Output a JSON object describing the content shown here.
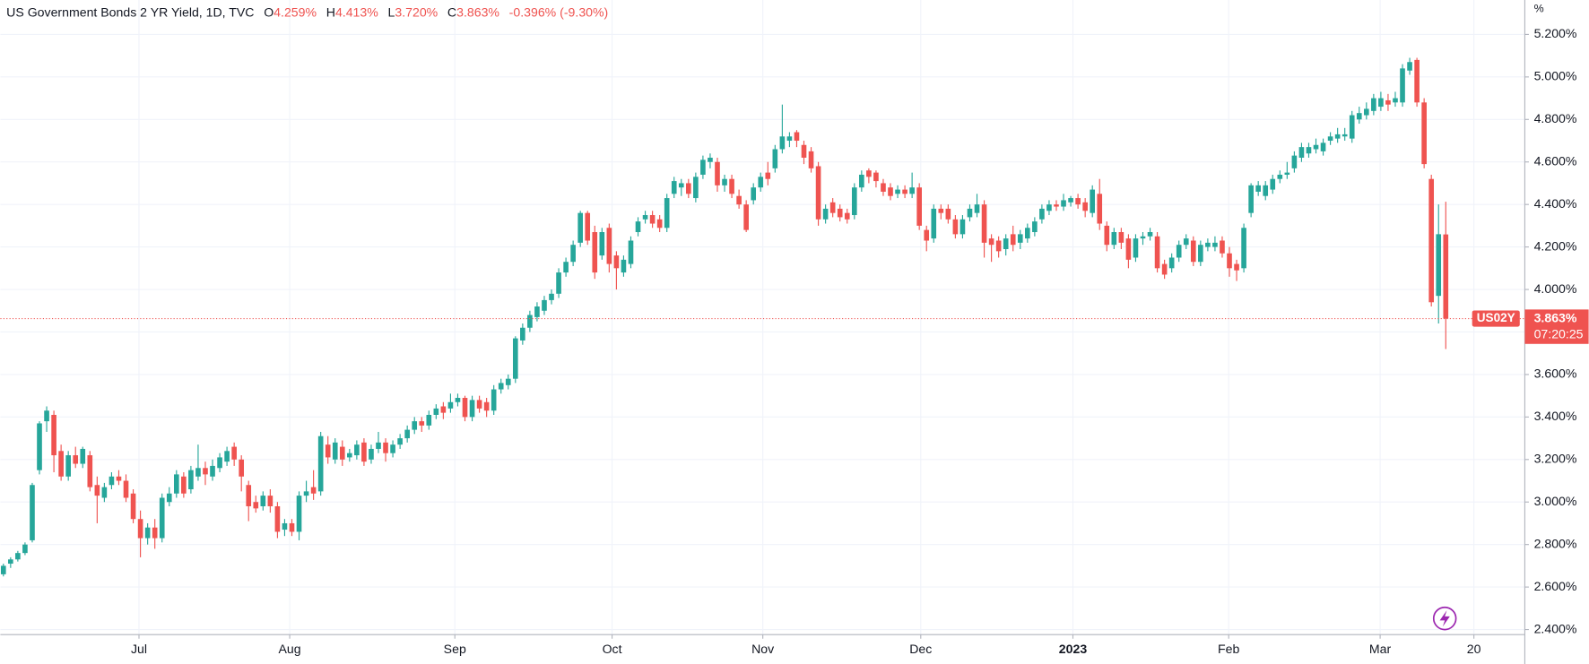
{
  "chart_data": {
    "type": "candlestick",
    "title": "US Government Bonds 2 YR Yield, 1D, TVC",
    "ohlc_keys": [
      "O",
      "H",
      "L",
      "C"
    ],
    "ohlc_value_labels": [
      "4.259%",
      "4.413%",
      "3.720%",
      "3.863%"
    ],
    "change_label": "-0.396% (-9.30%)",
    "unit": "%",
    "symbol": "US02Y",
    "last_label": "3.863%",
    "countdown": "07:20:25",
    "up_color": "#26a69a",
    "down_color": "#ef5350",
    "grid": true,
    "ylim": [
      2.376,
      5.362
    ],
    "yticks": [
      {
        "value": 5.2,
        "label": "5.200%"
      },
      {
        "value": 5.0,
        "label": "5.000%"
      },
      {
        "value": 4.8,
        "label": "4.800%"
      },
      {
        "value": 4.6,
        "label": "4.600%"
      },
      {
        "value": 4.4,
        "label": "4.400%"
      },
      {
        "value": 4.2,
        "label": "4.200%"
      },
      {
        "value": 4.0,
        "label": "4.000%"
      },
      {
        "value": 3.8,
        "label": "3.800%"
      },
      {
        "value": 3.6,
        "label": "3.600%"
      },
      {
        "value": 3.4,
        "label": "3.400%"
      },
      {
        "value": 3.2,
        "label": "3.200%"
      },
      {
        "value": 3.0,
        "label": "3.000%"
      },
      {
        "value": 2.8,
        "label": "2.800%"
      },
      {
        "value": 2.6,
        "label": "2.600%"
      },
      {
        "value": 2.4,
        "label": "2.400%"
      }
    ],
    "xlim": [
      -0.42,
      210.96
    ],
    "xticks": [
      {
        "value": 18.8,
        "label": "Jul"
      },
      {
        "value": 39.7,
        "label": "Aug"
      },
      {
        "value": 62.6,
        "label": "Sep"
      },
      {
        "value": 84.4,
        "label": "Oct"
      },
      {
        "value": 105.3,
        "label": "Nov"
      },
      {
        "value": 127.2,
        "label": "Dec"
      },
      {
        "value": 148.3,
        "label": "2023"
      },
      {
        "value": 169.9,
        "label": "Feb"
      },
      {
        "value": 190.9,
        "label": "Mar"
      },
      {
        "value": 203.9,
        "label": "20"
      }
    ],
    "ohlc": [
      [
        2.66,
        2.71,
        2.65,
        2.7
      ],
      [
        2.71,
        2.74,
        2.69,
        2.73
      ],
      [
        2.73,
        2.77,
        2.72,
        2.76
      ],
      [
        2.76,
        2.81,
        2.75,
        2.8
      ],
      [
        2.82,
        3.09,
        2.81,
        3.08
      ],
      [
        3.15,
        3.38,
        3.13,
        3.37
      ],
      [
        3.38,
        3.45,
        3.33,
        3.43
      ],
      [
        3.41,
        3.43,
        3.14,
        3.22
      ],
      [
        3.24,
        3.27,
        3.1,
        3.12
      ],
      [
        3.12,
        3.24,
        3.1,
        3.22
      ],
      [
        3.22,
        3.26,
        3.16,
        3.18
      ],
      [
        3.18,
        3.26,
        3.16,
        3.25
      ],
      [
        3.22,
        3.24,
        3.05,
        3.07
      ],
      [
        3.08,
        3.12,
        2.9,
        3.03
      ],
      [
        3.02,
        3.09,
        3.0,
        3.07
      ],
      [
        3.08,
        3.14,
        3.06,
        3.12
      ],
      [
        3.12,
        3.15,
        3.08,
        3.1
      ],
      [
        3.1,
        3.13,
        3.0,
        3.02
      ],
      [
        3.04,
        3.06,
        2.9,
        2.92
      ],
      [
        2.92,
        2.96,
        2.74,
        2.83
      ],
      [
        2.83,
        2.9,
        2.8,
        2.88
      ],
      [
        2.88,
        2.92,
        2.78,
        2.83
      ],
      [
        2.83,
        3.04,
        2.81,
        3.02
      ],
      [
        3.0,
        3.07,
        2.98,
        3.04
      ],
      [
        3.04,
        3.15,
        3.02,
        3.13
      ],
      [
        3.12,
        3.14,
        3.02,
        3.04
      ],
      [
        3.06,
        3.17,
        3.04,
        3.15
      ],
      [
        3.12,
        3.27,
        3.1,
        3.16
      ],
      [
        3.16,
        3.19,
        3.08,
        3.13
      ],
      [
        3.12,
        3.2,
        3.1,
        3.17
      ],
      [
        3.16,
        3.23,
        3.14,
        3.21
      ],
      [
        3.19,
        3.26,
        3.17,
        3.24
      ],
      [
        3.26,
        3.28,
        3.17,
        3.2
      ],
      [
        3.2,
        3.22,
        3.05,
        3.12
      ],
      [
        3.08,
        3.1,
        2.91,
        2.98
      ],
      [
        3.0,
        3.03,
        2.95,
        2.97
      ],
      [
        2.98,
        3.05,
        2.96,
        3.03
      ],
      [
        3.03,
        3.06,
        2.95,
        2.98
      ],
      [
        2.98,
        3.0,
        2.83,
        2.86
      ],
      [
        2.87,
        2.92,
        2.84,
        2.9
      ],
      [
        2.9,
        2.92,
        2.84,
        2.86
      ],
      [
        2.86,
        3.05,
        2.82,
        3.03
      ],
      [
        3.03,
        3.1,
        3.0,
        3.05
      ],
      [
        3.07,
        3.15,
        3.01,
        3.04
      ],
      [
        3.05,
        3.33,
        3.03,
        3.31
      ],
      [
        3.27,
        3.31,
        3.18,
        3.21
      ],
      [
        3.2,
        3.3,
        3.18,
        3.28
      ],
      [
        3.26,
        3.29,
        3.17,
        3.2
      ],
      [
        3.21,
        3.25,
        3.19,
        3.23
      ],
      [
        3.22,
        3.29,
        3.2,
        3.27
      ],
      [
        3.28,
        3.3,
        3.17,
        3.19
      ],
      [
        3.2,
        3.27,
        3.18,
        3.25
      ],
      [
        3.25,
        3.33,
        3.23,
        3.28
      ],
      [
        3.28,
        3.3,
        3.19,
        3.23
      ],
      [
        3.23,
        3.29,
        3.21,
        3.27
      ],
      [
        3.27,
        3.32,
        3.25,
        3.3
      ],
      [
        3.3,
        3.36,
        3.28,
        3.34
      ],
      [
        3.34,
        3.4,
        3.32,
        3.38
      ],
      [
        3.38,
        3.4,
        3.33,
        3.36
      ],
      [
        3.36,
        3.43,
        3.34,
        3.41
      ],
      [
        3.41,
        3.46,
        3.39,
        3.44
      ],
      [
        3.45,
        3.47,
        3.39,
        3.42
      ],
      [
        3.44,
        3.51,
        3.42,
        3.47
      ],
      [
        3.47,
        3.51,
        3.45,
        3.49
      ],
      [
        3.49,
        3.5,
        3.38,
        3.4
      ],
      [
        3.4,
        3.5,
        3.38,
        3.48
      ],
      [
        3.48,
        3.5,
        3.42,
        3.44
      ],
      [
        3.47,
        3.49,
        3.4,
        3.43
      ],
      [
        3.43,
        3.55,
        3.41,
        3.53
      ],
      [
        3.53,
        3.58,
        3.51,
        3.56
      ],
      [
        3.55,
        3.6,
        3.53,
        3.58
      ],
      [
        3.58,
        3.78,
        3.56,
        3.77
      ],
      [
        3.76,
        3.84,
        3.74,
        3.82
      ],
      [
        3.82,
        3.9,
        3.8,
        3.88
      ],
      [
        3.87,
        3.94,
        3.85,
        3.92
      ],
      [
        3.9,
        3.97,
        3.88,
        3.95
      ],
      [
        3.95,
        4.0,
        3.93,
        3.98
      ],
      [
        3.98,
        4.1,
        3.96,
        4.08
      ],
      [
        4.08,
        4.15,
        4.06,
        4.13
      ],
      [
        4.13,
        4.23,
        4.11,
        4.21
      ],
      [
        4.22,
        4.37,
        4.2,
        4.36
      ],
      [
        4.36,
        4.37,
        4.21,
        4.23
      ],
      [
        4.27,
        4.3,
        4.05,
        4.08
      ],
      [
        4.16,
        4.29,
        4.14,
        4.27
      ],
      [
        4.29,
        4.31,
        4.08,
        4.12
      ],
      [
        4.16,
        4.18,
        4.0,
        4.1
      ],
      [
        4.08,
        4.16,
        4.06,
        4.14
      ],
      [
        4.12,
        4.25,
        4.1,
        4.23
      ],
      [
        4.27,
        4.34,
        4.25,
        4.32
      ],
      [
        4.33,
        4.37,
        4.31,
        4.35
      ],
      [
        4.35,
        4.37,
        4.29,
        4.31
      ],
      [
        4.33,
        4.35,
        4.27,
        4.29
      ],
      [
        4.29,
        4.45,
        4.27,
        4.43
      ],
      [
        4.45,
        4.53,
        4.43,
        4.51
      ],
      [
        4.48,
        4.52,
        4.44,
        4.5
      ],
      [
        4.5,
        4.52,
        4.43,
        4.45
      ],
      [
        4.43,
        4.55,
        4.41,
        4.53
      ],
      [
        4.54,
        4.63,
        4.52,
        4.61
      ],
      [
        4.6,
        4.64,
        4.57,
        4.62
      ],
      [
        4.6,
        4.62,
        4.46,
        4.49
      ],
      [
        4.49,
        4.54,
        4.46,
        4.52
      ],
      [
        4.52,
        4.54,
        4.43,
        4.45
      ],
      [
        4.44,
        4.47,
        4.38,
        4.4
      ],
      [
        4.4,
        4.42,
        4.27,
        4.28
      ],
      [
        4.42,
        4.5,
        4.4,
        4.48
      ],
      [
        4.48,
        4.55,
        4.46,
        4.53
      ],
      [
        4.55,
        4.6,
        4.49,
        4.52
      ],
      [
        4.57,
        4.68,
        4.55,
        4.66
      ],
      [
        4.66,
        4.87,
        4.64,
        4.72
      ],
      [
        4.7,
        4.74,
        4.67,
        4.72
      ],
      [
        4.74,
        4.75,
        4.67,
        4.7
      ],
      [
        4.68,
        4.7,
        4.59,
        4.62
      ],
      [
        4.65,
        4.67,
        4.55,
        4.57
      ],
      [
        4.58,
        4.6,
        4.3,
        4.33
      ],
      [
        4.33,
        4.4,
        4.31,
        4.38
      ],
      [
        4.41,
        4.43,
        4.34,
        4.36
      ],
      [
        4.38,
        4.4,
        4.32,
        4.34
      ],
      [
        4.36,
        4.38,
        4.31,
        4.33
      ],
      [
        4.35,
        4.5,
        4.33,
        4.48
      ],
      [
        4.48,
        4.56,
        4.46,
        4.54
      ],
      [
        4.56,
        4.57,
        4.5,
        4.53
      ],
      [
        4.55,
        4.56,
        4.48,
        4.51
      ],
      [
        4.5,
        4.52,
        4.44,
        4.46
      ],
      [
        4.48,
        4.5,
        4.42,
        4.44
      ],
      [
        4.45,
        4.49,
        4.43,
        4.47
      ],
      [
        4.47,
        4.49,
        4.43,
        4.45
      ],
      [
        4.45,
        4.55,
        4.43,
        4.48
      ],
      [
        4.48,
        4.5,
        4.28,
        4.3
      ],
      [
        4.28,
        4.3,
        4.18,
        4.23
      ],
      [
        4.24,
        4.4,
        4.22,
        4.38
      ],
      [
        4.38,
        4.4,
        4.33,
        4.36
      ],
      [
        4.38,
        4.4,
        4.31,
        4.33
      ],
      [
        4.33,
        4.35,
        4.24,
        4.26
      ],
      [
        4.26,
        4.35,
        4.24,
        4.33
      ],
      [
        4.34,
        4.4,
        4.32,
        4.38
      ],
      [
        4.36,
        4.45,
        4.34,
        4.4
      ],
      [
        4.4,
        4.42,
        4.15,
        4.22
      ],
      [
        4.24,
        4.26,
        4.13,
        4.21
      ],
      [
        4.23,
        4.25,
        4.15,
        4.18
      ],
      [
        4.19,
        4.26,
        4.16,
        4.24
      ],
      [
        4.26,
        4.3,
        4.18,
        4.21
      ],
      [
        4.22,
        4.28,
        4.19,
        4.26
      ],
      [
        4.24,
        4.31,
        4.22,
        4.29
      ],
      [
        4.27,
        4.34,
        4.25,
        4.32
      ],
      [
        4.33,
        4.4,
        4.31,
        4.38
      ],
      [
        4.37,
        4.42,
        4.35,
        4.4
      ],
      [
        4.4,
        4.42,
        4.37,
        4.39
      ],
      [
        4.39,
        4.45,
        4.37,
        4.42
      ],
      [
        4.41,
        4.44,
        4.39,
        4.43
      ],
      [
        4.43,
        4.45,
        4.38,
        4.4
      ],
      [
        4.41,
        4.43,
        4.34,
        4.37
      ],
      [
        4.36,
        4.49,
        4.34,
        4.47
      ],
      [
        4.45,
        4.52,
        4.28,
        4.31
      ],
      [
        4.3,
        4.32,
        4.18,
        4.21
      ],
      [
        4.21,
        4.29,
        4.19,
        4.27
      ],
      [
        4.27,
        4.29,
        4.19,
        4.22
      ],
      [
        4.24,
        4.26,
        4.1,
        4.14
      ],
      [
        4.15,
        4.26,
        4.13,
        4.24
      ],
      [
        4.24,
        4.27,
        4.21,
        4.25
      ],
      [
        4.25,
        4.29,
        4.23,
        4.27
      ],
      [
        4.25,
        4.27,
        4.08,
        4.1
      ],
      [
        4.12,
        4.14,
        4.05,
        4.07
      ],
      [
        4.1,
        4.17,
        4.08,
        4.15
      ],
      [
        4.15,
        4.23,
        4.13,
        4.21
      ],
      [
        4.21,
        4.26,
        4.19,
        4.24
      ],
      [
        4.23,
        4.25,
        4.11,
        4.13
      ],
      [
        4.13,
        4.23,
        4.11,
        4.21
      ],
      [
        4.2,
        4.24,
        4.18,
        4.22
      ],
      [
        4.2,
        4.25,
        4.18,
        4.22
      ],
      [
        4.23,
        4.25,
        4.15,
        4.17
      ],
      [
        4.17,
        4.2,
        4.06,
        4.1
      ],
      [
        4.12,
        4.14,
        4.04,
        4.09
      ],
      [
        4.1,
        4.31,
        4.08,
        4.29
      ],
      [
        4.36,
        4.5,
        4.34,
        4.49
      ],
      [
        4.46,
        4.51,
        4.44,
        4.49
      ],
      [
        4.44,
        4.51,
        4.42,
        4.49
      ],
      [
        4.47,
        4.54,
        4.45,
        4.52
      ],
      [
        4.52,
        4.56,
        4.5,
        4.54
      ],
      [
        4.54,
        4.6,
        4.52,
        4.55
      ],
      [
        4.57,
        4.65,
        4.55,
        4.63
      ],
      [
        4.62,
        4.69,
        4.6,
        4.67
      ],
      [
        4.64,
        4.69,
        4.62,
        4.67
      ],
      [
        4.66,
        4.71,
        4.64,
        4.68
      ],
      [
        4.65,
        4.71,
        4.63,
        4.69
      ],
      [
        4.7,
        4.74,
        4.68,
        4.72
      ],
      [
        4.71,
        4.76,
        4.69,
        4.73
      ],
      [
        4.72,
        4.76,
        4.7,
        4.73
      ],
      [
        4.71,
        4.84,
        4.69,
        4.82
      ],
      [
        4.8,
        4.86,
        4.78,
        4.83
      ],
      [
        4.82,
        4.88,
        4.8,
        4.85
      ],
      [
        4.84,
        4.92,
        4.82,
        4.9
      ],
      [
        4.86,
        4.93,
        4.84,
        4.9
      ],
      [
        4.89,
        4.92,
        4.84,
        4.87
      ],
      [
        4.88,
        4.93,
        4.86,
        4.9
      ],
      [
        4.88,
        5.06,
        4.86,
        5.04
      ],
      [
        5.03,
        5.09,
        5.01,
        5.07
      ],
      [
        5.08,
        5.09,
        4.86,
        4.88
      ],
      [
        4.88,
        4.9,
        4.57,
        4.59
      ],
      [
        4.52,
        4.54,
        3.92,
        3.94
      ],
      [
        3.97,
        4.4,
        3.84,
        4.26
      ],
      [
        4.259,
        4.413,
        3.72,
        3.863
      ]
    ]
  }
}
